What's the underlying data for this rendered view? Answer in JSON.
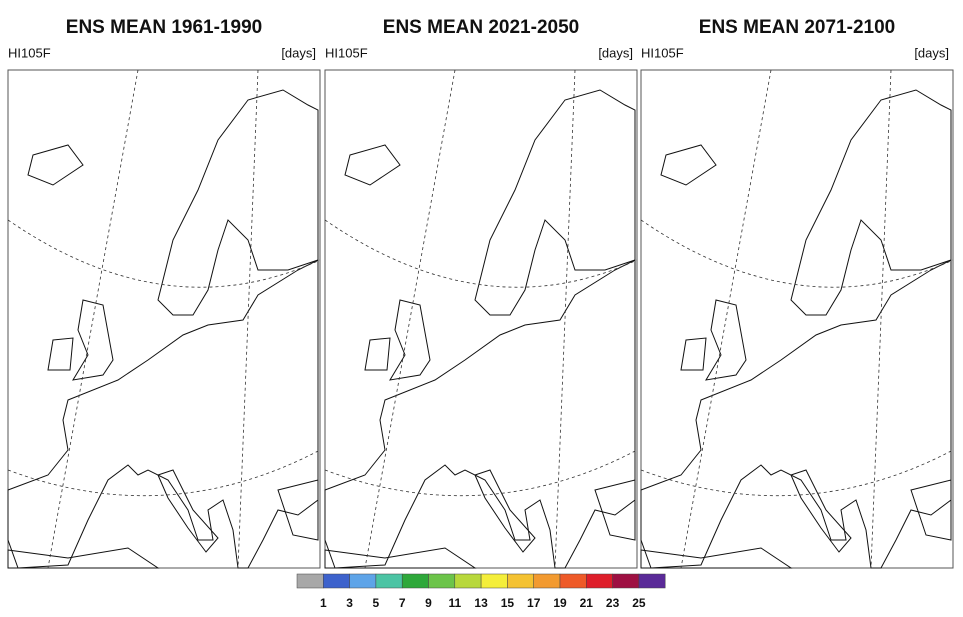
{
  "panels": [
    {
      "title": "ENS MEAN 1961-1990",
      "label": "HI105F",
      "units": "[days]"
    },
    {
      "title": "ENS MEAN 2021-2050",
      "label": "HI105F",
      "units": "[days]"
    },
    {
      "title": "ENS MEAN 2071-2100",
      "label": "HI105F",
      "units": "[days]"
    }
  ],
  "colorbar": {
    "labels": [
      1,
      3,
      5,
      7,
      9,
      11,
      13,
      15,
      17,
      19,
      21,
      23,
      25
    ],
    "colors": [
      "#a8a8a8",
      "#3d62cc",
      "#5ea4e8",
      "#4cc4a4",
      "#2ea83a",
      "#6cc44a",
      "#b8d83c",
      "#f4ee3a",
      "#f4c232",
      "#f29a30",
      "#ee5a28",
      "#de1e2a",
      "#9e1042",
      "#5a2a98"
    ]
  }
}
